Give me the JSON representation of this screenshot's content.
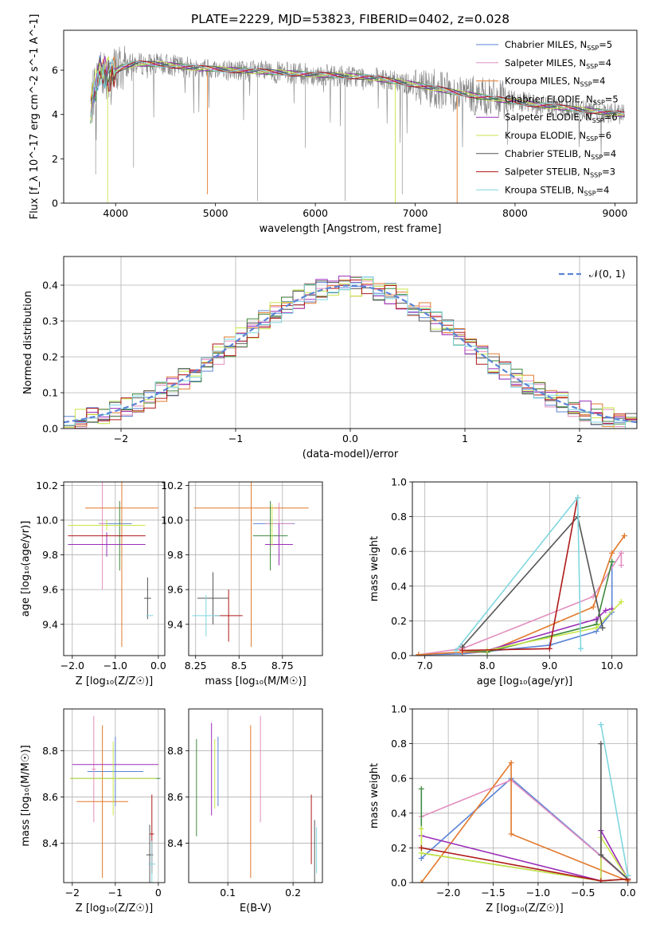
{
  "figure_title": "PLATE=2229, MJD=53823, FIBERID=0402, z=0.028",
  "colors": {
    "Chabrier MILES": "#5b84d6",
    "Salpeter MILES": "#e28fc0",
    "Kroupa MILES": "#e2792c",
    "Chabrier ELODIE": "#3f8a3f",
    "Salpeter ELODIE": "#9a2eb8",
    "Kroupa ELODIE": "#c8e64a",
    "Chabrier STELIB": "#555555",
    "Salpeter STELIB": "#b01818",
    "Kroupa STELIB": "#7fd6e0",
    "spectrum": "#808080",
    "gaussian": "#5b84d6"
  },
  "chart_data": [
    {
      "id": "spectrum",
      "type": "line",
      "xlabel": "wavelength [Angstrom, rest frame]",
      "ylabel": "Flux [f_λ 10^-17 erg cm^-2 s^-1 A^-1]",
      "xlim": [
        3480,
        9220
      ],
      "ylim": [
        0,
        7.8
      ],
      "xticks": [
        4000,
        5000,
        6000,
        7000,
        8000,
        9000
      ],
      "yticks": [
        0,
        2,
        4,
        6
      ],
      "grid": false,
      "legend_position": "upper right",
      "legend": [
        {
          "key": "Chabrier MILES",
          "base": "Chabrier MILES, N",
          "sub": "SSP",
          "tail": "=5"
        },
        {
          "key": "Salpeter MILES",
          "base": "Salpeter MILES, N",
          "sub": "SSP",
          "tail": "=4"
        },
        {
          "key": "Kroupa MILES",
          "base": "Kroupa MILES, N",
          "sub": "SSP",
          "tail": "=4"
        },
        {
          "key": "Chabrier ELODIE",
          "base": "Chabrier ELODIE, N",
          "sub": "SSP",
          "tail": "=5"
        },
        {
          "key": "Salpeter ELODIE",
          "base": "Salpeter ELODIE, N",
          "sub": "SSP",
          "tail": "=6"
        },
        {
          "key": "Kroupa ELODIE",
          "base": "Kroupa ELODIE, N",
          "sub": "SSP",
          "tail": "=6"
        },
        {
          "key": "Chabrier STELIB",
          "base": "Chabrier STELIB, N",
          "sub": "SSP",
          "tail": "=4"
        },
        {
          "key": "Salpeter STELIB",
          "base": "Salpeter STELIB, N",
          "sub": "SSP",
          "tail": "=3"
        },
        {
          "key": "Kroupa STELIB",
          "base": "Kroupa STELIB, N",
          "sub": "SSP",
          "tail": "=4"
        }
      ],
      "continuum_points": [
        [
          3750,
          4.3
        ],
        [
          3800,
          5.4
        ],
        [
          3850,
          6.0
        ],
        [
          3950,
          5.8
        ],
        [
          4050,
          6.1
        ],
        [
          4200,
          6.3
        ],
        [
          4500,
          6.25
        ],
        [
          4800,
          6.1
        ],
        [
          5200,
          6.0
        ],
        [
          5600,
          5.9
        ],
        [
          6000,
          5.8
        ],
        [
          6500,
          5.7
        ],
        [
          7000,
          5.35
        ],
        [
          7400,
          5.0
        ],
        [
          7800,
          4.7
        ],
        [
          8200,
          4.45
        ],
        [
          8600,
          4.25
        ],
        [
          9000,
          4.05
        ],
        [
          9100,
          4.0
        ]
      ],
      "dips": [
        {
          "key": "spectrum",
          "x": 3800,
          "y": 1.3
        },
        {
          "key": "spectrum",
          "x": 4180,
          "y": 1.6
        },
        {
          "key": "spectrum",
          "x": 5420,
          "y": 0.1
        },
        {
          "key": "spectrum",
          "x": 5900,
          "y": 2.5
        },
        {
          "key": "spectrum",
          "x": 6300,
          "y": 0.1
        },
        {
          "key": "spectrum",
          "x": 6870,
          "y": 0.4
        },
        {
          "key": "Kroupa MILES",
          "x": 4920,
          "y": 0.4
        },
        {
          "key": "Kroupa MILES",
          "x": 7420,
          "y": 0.0
        },
        {
          "key": "Kroupa ELODIE",
          "x": 3920,
          "y": 0.0
        },
        {
          "key": "Kroupa ELODIE",
          "x": 6800,
          "y": 0.0
        }
      ]
    },
    {
      "id": "residuals",
      "type": "line",
      "xlabel": "(data-model)/error",
      "ylabel": "Normed distribution",
      "xlim": [
        -2.5,
        2.5
      ],
      "ylim": [
        0,
        0.48
      ],
      "xticks": [
        -2,
        -1,
        0,
        1,
        2
      ],
      "yticks": [
        0.0,
        0.1,
        0.2,
        0.3,
        0.4
      ],
      "grid": true,
      "legend_label": "𝒩(0, 1)",
      "legend_position": "upper right",
      "bin_width": 0.1,
      "gaussian": {
        "mu": 0,
        "sigma": 1
      }
    },
    {
      "id": "Z-age",
      "type": "scatter",
      "xlabel": "Z [log₁₀(Z/Z☉)]",
      "ylabel": "age  [log₁₀(age/yr)]",
      "xlim": [
        -2.2,
        0.15
      ],
      "ylim": [
        9.22,
        10.22
      ],
      "xticks": [
        -2,
        -1,
        0
      ],
      "yticks": [
        9.4,
        9.6,
        9.8,
        10.0,
        10.2
      ],
      "grid": true,
      "points": [
        {
          "key": "Chabrier MILES",
          "x": -1.0,
          "y": 9.98,
          "dx": 0.38,
          "dy": 0.0
        },
        {
          "key": "Salpeter MILES",
          "x": -1.3,
          "y": 9.98,
          "dx": 0.08,
          "dy": 0.38
        },
        {
          "key": "Kroupa MILES",
          "x": -0.85,
          "y": 10.07,
          "dx": 0.85,
          "dy": 0.8
        },
        {
          "key": "Chabrier ELODIE",
          "x": -0.9,
          "y": 9.91,
          "dx": 0.05,
          "dy": 0.2
        },
        {
          "key": "Salpeter ELODIE",
          "x": -1.2,
          "y": 9.86,
          "dx": 0.9,
          "dy": 0.07
        },
        {
          "key": "Kroupa ELODIE",
          "x": -1.2,
          "y": 9.97,
          "dx": 0.9,
          "dy": 0.03
        },
        {
          "key": "Chabrier STELIB",
          "x": -0.25,
          "y": 9.55,
          "dx": 0.08,
          "dy": 0.12
        },
        {
          "key": "Salpeter STELIB",
          "x": -1.2,
          "y": 9.91,
          "dx": 0.9,
          "dy": 0.0
        },
        {
          "key": "Kroupa STELIB",
          "x": -0.2,
          "y": 9.45,
          "dx": 0.08,
          "dy": 0.0
        }
      ]
    },
    {
      "id": "mass-age",
      "type": "scatter",
      "xlabel": "mass [log₁₀(M/M☉)]",
      "ylabel": "",
      "xlim": [
        8.21,
        8.98
      ],
      "ylim": [
        9.22,
        10.22
      ],
      "xticks": [
        8.25,
        8.5,
        8.75
      ],
      "yticks": [
        9.4,
        9.6,
        9.8,
        10.0,
        10.2
      ],
      "grid": true,
      "points": [
        {
          "key": "Chabrier MILES",
          "x": 8.7,
          "y": 9.98,
          "dx": 0.12,
          "dy": 0.0
        },
        {
          "key": "Salpeter MILES",
          "x": 8.73,
          "y": 9.98,
          "dx": 0.08,
          "dy": 0.12
        },
        {
          "key": "Kroupa MILES",
          "x": 8.57,
          "y": 10.07,
          "dx": 0.33,
          "dy": 0.8
        },
        {
          "key": "Chabrier ELODIE",
          "x": 8.68,
          "y": 9.91,
          "dx": 0.1,
          "dy": 0.2
        },
        {
          "key": "Salpeter ELODIE",
          "x": 8.73,
          "y": 9.86,
          "dx": 0.08,
          "dy": 0.12
        },
        {
          "key": "Kroupa ELODIE",
          "x": 8.69,
          "y": 9.97,
          "dx": 0.0,
          "dy": 0.12
        },
        {
          "key": "Chabrier STELIB",
          "x": 8.35,
          "y": 9.55,
          "dx": 0.09,
          "dy": 0.15
        },
        {
          "key": "Salpeter STELIB",
          "x": 8.44,
          "y": 9.45,
          "dx": 0.08,
          "dy": 0.15
        },
        {
          "key": "Kroupa STELIB",
          "x": 8.31,
          "y": 9.45,
          "dx": 0.08,
          "dy": 0.12
        }
      ]
    },
    {
      "id": "age-weight",
      "type": "line",
      "xlabel": "age  [log₁₀(age/yr)]",
      "ylabel": "mass weight",
      "xlim": [
        6.8,
        10.4
      ],
      "ylim": [
        0,
        1.0
      ],
      "xticks": [
        7,
        8,
        9,
        10
      ],
      "yticks": [
        0.0,
        0.2,
        0.4,
        0.6,
        0.8,
        1.0
      ],
      "grid": true,
      "series": [
        {
          "key": "Chabrier MILES",
          "x": [
            6.9,
            7.6,
            9.0,
            9.75,
            10.0,
            10.0
          ],
          "y": [
            0.005,
            0.01,
            0.06,
            0.14,
            0.25,
            0.54
          ]
        },
        {
          "key": "Salpeter MILES",
          "x": [
            6.9,
            7.6,
            9.7,
            10.15,
            10.15
          ],
          "y": [
            0.005,
            0.04,
            0.34,
            0.59,
            0.52
          ]
        },
        {
          "key": "Kroupa MILES",
          "x": [
            6.9,
            7.6,
            8.0,
            9.7,
            10.0,
            10.2,
            10.2
          ],
          "y": [
            0.005,
            0.02,
            0.02,
            0.28,
            0.59,
            0.69,
            0.69
          ]
        },
        {
          "key": "Chabrier ELODIE",
          "x": [
            7.6,
            8.0,
            9.75,
            10.0,
            10.0
          ],
          "y": [
            0.03,
            0.02,
            0.18,
            0.54,
            0.54
          ]
        },
        {
          "key": "Salpeter ELODIE",
          "x": [
            7.6,
            8.0,
            9.75,
            9.9,
            10.0
          ],
          "y": [
            0.03,
            0.03,
            0.21,
            0.26,
            0.27
          ]
        },
        {
          "key": "Kroupa ELODIE",
          "x": [
            7.6,
            8.0,
            9.75,
            10.15,
            10.15
          ],
          "y": [
            0.03,
            0.03,
            0.16,
            0.31,
            0.31
          ]
        },
        {
          "key": "Chabrier STELIB",
          "x": [
            7.6,
            9.45,
            9.85,
            9.85
          ],
          "y": [
            0.05,
            0.8,
            0.16,
            0.16
          ]
        },
        {
          "key": "Salpeter STELIB",
          "x": [
            7.6,
            9.0,
            9.45
          ],
          "y": [
            0.03,
            0.04,
            0.91
          ]
        },
        {
          "key": "Kroupa STELIB",
          "x": [
            7.5,
            9.45,
            9.5,
            9.5
          ],
          "y": [
            0.03,
            0.91,
            0.04,
            0.04
          ]
        }
      ]
    },
    {
      "id": "Z-mass",
      "type": "scatter",
      "xlabel": "Z [log₁₀(Z/Z☉)]",
      "ylabel": "mass [log₁₀(M/M☉)]",
      "xlim": [
        -2.2,
        0.15
      ],
      "ylim": [
        8.23,
        8.98
      ],
      "xticks": [
        -2,
        -1,
        0
      ],
      "yticks": [
        8.4,
        8.6,
        8.8
      ],
      "grid": true,
      "points": [
        {
          "key": "Chabrier MILES",
          "x": -1.0,
          "y": 8.71,
          "dx": 0.65,
          "dy": 0.15
        },
        {
          "key": "Salpeter MILES",
          "x": -1.5,
          "y": 8.72,
          "dx": 0.05,
          "dy": 0.23
        },
        {
          "key": "Kroupa MILES",
          "x": -1.3,
          "y": 8.58,
          "dx": 0.6,
          "dy": 0.33
        },
        {
          "key": "Chabrier ELODIE",
          "x": -1.0,
          "y": 8.68,
          "dx": 1.05,
          "dy": 0.0
        },
        {
          "key": "Salpeter ELODIE",
          "x": -1.0,
          "y": 8.74,
          "dx": 1.0,
          "dy": 0.0
        },
        {
          "key": "Kroupa ELODIE",
          "x": -1.05,
          "y": 8.68,
          "dx": 1.0,
          "dy": 0.16
        },
        {
          "key": "Chabrier STELIB",
          "x": -0.2,
          "y": 8.35,
          "dx": 0.08,
          "dy": 0.13
        },
        {
          "key": "Salpeter STELIB",
          "x": -0.15,
          "y": 8.44,
          "dx": 0.05,
          "dy": 0.17
        },
        {
          "key": "Kroupa STELIB",
          "x": -0.15,
          "y": 8.31,
          "dx": 0.08,
          "dy": 0.1
        }
      ]
    },
    {
      "id": "EBV-mass",
      "type": "scatter",
      "xlabel": "E(B-V)",
      "ylabel": "",
      "xlim": [
        0.04,
        0.245
      ],
      "ylim": [
        8.23,
        8.98
      ],
      "xticks": [
        0.1,
        0.2
      ],
      "yticks": [
        8.4,
        8.6,
        8.8
      ],
      "grid": true,
      "points": [
        {
          "key": "Chabrier ELODIE",
          "x": 0.052,
          "y": 8.64,
          "dx": 0.0,
          "dy": 0.21
        },
        {
          "key": "Salpeter ELODIE",
          "x": 0.075,
          "y": 8.72,
          "dx": 0.0,
          "dy": 0.2
        },
        {
          "key": "Kroupa ELODIE",
          "x": 0.08,
          "y": 8.7,
          "dx": 0.0,
          "dy": 0.15
        },
        {
          "key": "Chabrier MILES",
          "x": 0.085,
          "y": 8.71,
          "dx": 0.0,
          "dy": 0.15
        },
        {
          "key": "Kroupa MILES",
          "x": 0.135,
          "y": 8.58,
          "dx": 0.0,
          "dy": 0.33
        },
        {
          "key": "Salpeter MILES",
          "x": 0.15,
          "y": 8.72,
          "dx": 0.0,
          "dy": 0.23
        },
        {
          "key": "Salpeter STELIB",
          "x": 0.228,
          "y": 8.46,
          "dx": 0.0,
          "dy": 0.15
        },
        {
          "key": "Chabrier STELIB",
          "x": 0.233,
          "y": 8.35,
          "dx": 0.0,
          "dy": 0.15
        },
        {
          "key": "Kroupa STELIB",
          "x": 0.236,
          "y": 8.37,
          "dx": 0.0,
          "dy": 0.1
        }
      ]
    },
    {
      "id": "Z-weight",
      "type": "line",
      "xlabel": "Z [log₁₀(Z/Z☉)]",
      "ylabel": "mass weight",
      "xlim": [
        -2.4,
        0.1
      ],
      "ylim": [
        0,
        1.0
      ],
      "xticks": [
        -2.0,
        -1.5,
        -1.0,
        -0.5,
        0.0
      ],
      "yticks": [
        0.0,
        0.2,
        0.4,
        0.6,
        0.8,
        1.0
      ],
      "grid": true,
      "series": [
        {
          "key": "Chabrier MILES",
          "x": [
            -2.3,
            -1.3,
            0.0,
            0.0
          ],
          "y": [
            0.14,
            0.6,
            0.02,
            0.04
          ]
        },
        {
          "key": "Salpeter MILES",
          "x": [
            -2.3,
            -1.3,
            0.0
          ],
          "y": [
            0.38,
            0.59,
            0.02
          ]
        },
        {
          "key": "Kroupa MILES",
          "x": [
            -2.3,
            -1.3,
            -1.3,
            0.0
          ],
          "y": [
            0.0,
            0.69,
            0.28,
            0.01
          ]
        },
        {
          "key": "Chabrier ELODIE",
          "x": [
            -2.3,
            -2.3,
            -0.3,
            0.0
          ],
          "y": [
            0.54,
            0.17,
            0.01,
            0.02
          ]
        },
        {
          "key": "Salpeter ELODIE",
          "x": [
            -2.3,
            -0.3,
            -0.3,
            0.0
          ],
          "y": [
            0.27,
            0.01,
            0.3,
            0.02
          ]
        },
        {
          "key": "Kroupa ELODIE",
          "x": [
            -2.3,
            -2.3,
            -0.3,
            -0.3,
            0.0
          ],
          "y": [
            0.31,
            0.17,
            0.01,
            0.26,
            0.02
          ]
        },
        {
          "key": "Chabrier STELIB",
          "x": [
            -0.3,
            -0.3,
            0.0,
            0.0
          ],
          "y": [
            0.8,
            0.16,
            0.02,
            0.04
          ]
        },
        {
          "key": "Salpeter STELIB",
          "x": [
            -2.3,
            -0.3,
            0.0
          ],
          "y": [
            0.2,
            0.01,
            0.02
          ]
        },
        {
          "key": "Kroupa STELIB",
          "x": [
            -0.3,
            -0.3,
            0.0,
            0.0
          ],
          "y": [
            0.91,
            0.91,
            0.04,
            0.04
          ]
        }
      ]
    }
  ]
}
